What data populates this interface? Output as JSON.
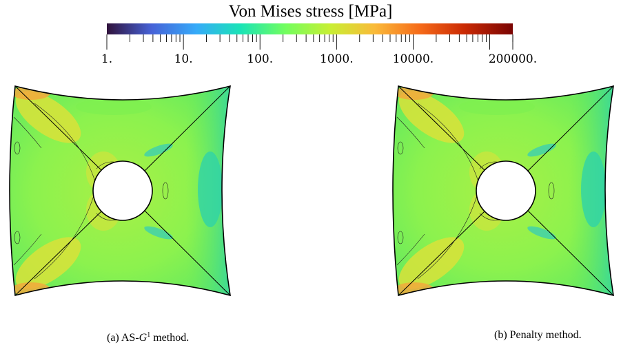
{
  "colorbar": {
    "title": "Von Mises stress [MPa]",
    "scale": "log",
    "range": [
      1,
      200000
    ],
    "tick_labels": [
      "1.",
      "10.",
      "100.",
      "1000.",
      "10000.",
      "200000."
    ],
    "tick_values": [
      1,
      10,
      100,
      1000,
      10000,
      200000
    ],
    "colormap": "turbo",
    "colormap_stops": [
      "#30123b",
      "#4662d7",
      "#36aaf9",
      "#1ae4b6",
      "#72fe5e",
      "#c8ef34",
      "#faba39",
      "#f66b19",
      "#ca2a04",
      "#7a0403"
    ]
  },
  "panels": [
    {
      "caption_prefix": "(a) AS-",
      "caption_symbol": "G",
      "caption_superscript": "1",
      "caption_suffix": " method."
    },
    {
      "caption": "(b) Penalty method."
    }
  ]
}
